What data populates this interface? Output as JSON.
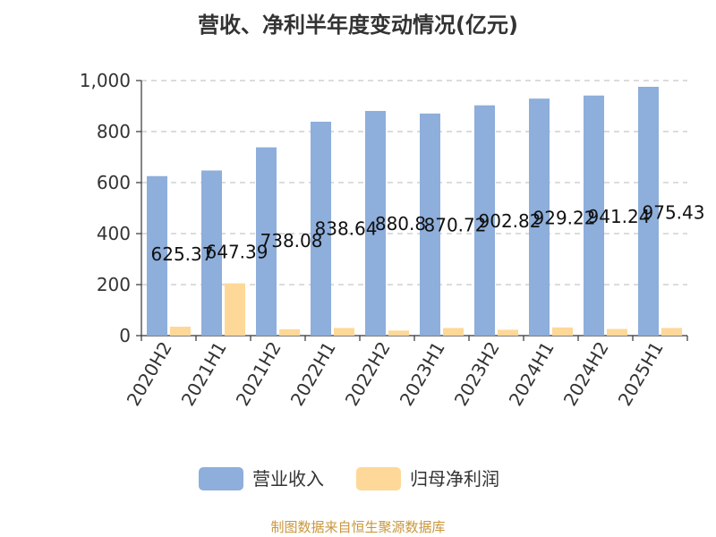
{
  "chart_data": {
    "type": "bar",
    "title": "营收、净利半年度变动情况(亿元)",
    "categories": [
      "2020H2",
      "2021H1",
      "2021H2",
      "2022H1",
      "2022H2",
      "2023H1",
      "2023H2",
      "2024H1",
      "2024H2",
      "2025H1"
    ],
    "series": [
      {
        "name": "营业收入",
        "color": "#8eaedb",
        "values": [
          625.37,
          647.39,
          738.08,
          838.64,
          880.8,
          870.72,
          902.82,
          929.22,
          941.24,
          975.43
        ],
        "labels": [
          "625.37",
          "647.39",
          "738.08",
          "838.64",
          "880.8",
          "870.72",
          "902.82",
          "929.22",
          "941.24",
          "975.43"
        ]
      },
      {
        "name": "归母净利润",
        "color": "#fed898",
        "values": [
          35,
          205,
          25,
          30,
          20,
          30,
          23,
          32,
          26,
          30
        ]
      }
    ],
    "ylim": [
      0,
      1000
    ],
    "yticks": [
      "0",
      "200",
      "400",
      "600",
      "800",
      "1,000"
    ],
    "ytick_values": [
      0,
      200,
      400,
      600,
      800,
      1000
    ],
    "grid": true,
    "legend_position": "bottom"
  },
  "source": "制图数据来自恒生聚源数据库"
}
